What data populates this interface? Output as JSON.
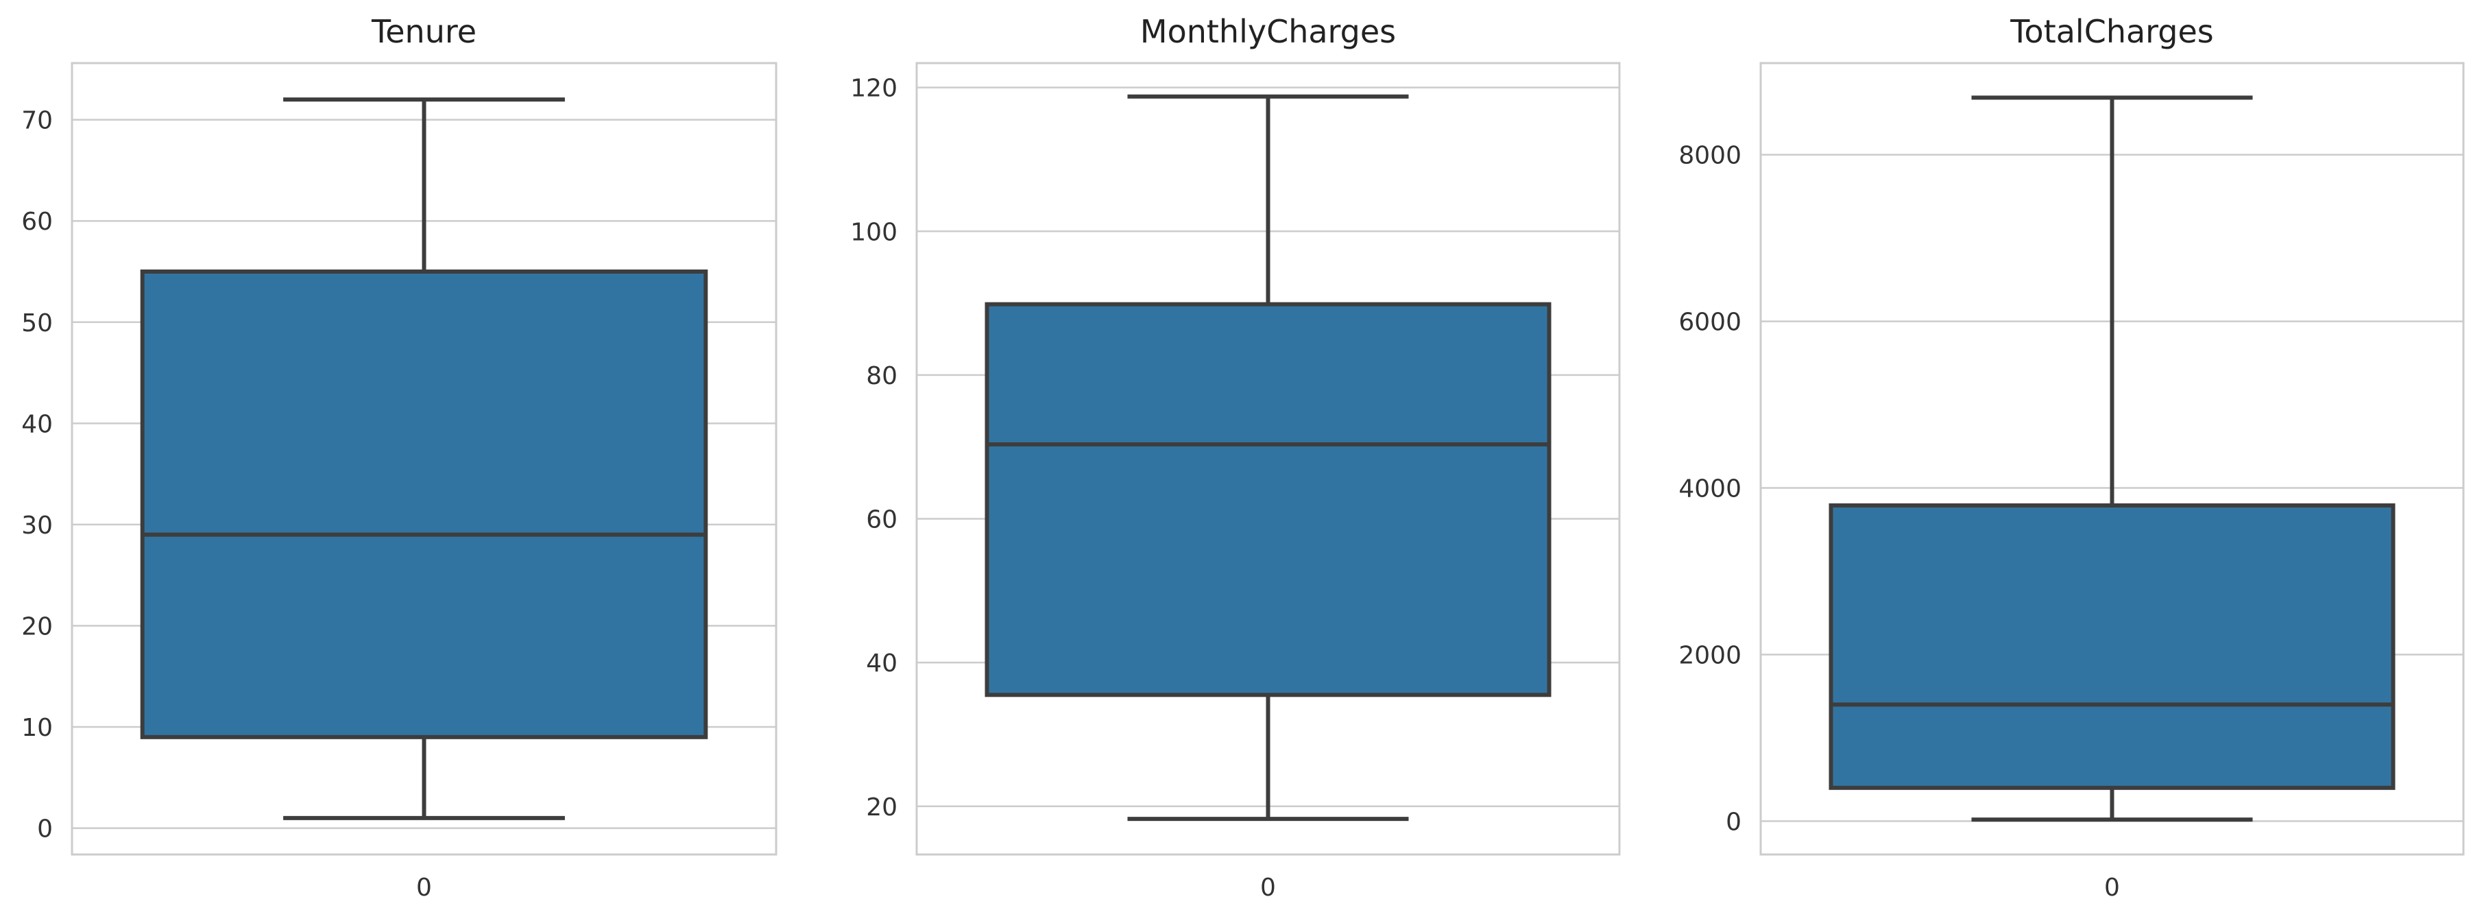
{
  "chart_data": [
    {
      "type": "box",
      "title": "Tenure",
      "categories": [
        "0"
      ],
      "ylim": [
        -2.6,
        75.6
      ],
      "yticks": [
        0,
        10,
        20,
        30,
        40,
        50,
        60,
        70
      ],
      "box": {
        "min": 1,
        "q1": 9,
        "median": 29,
        "q3": 55,
        "max": 72
      },
      "grid": true
    },
    {
      "type": "box",
      "title": "MonthlyCharges",
      "categories": [
        "0"
      ],
      "ylim": [
        13.3,
        123.4
      ],
      "yticks": [
        20,
        40,
        60,
        80,
        100,
        120
      ],
      "box": {
        "min": 18.25,
        "q1": 35.5,
        "median": 70.35,
        "q3": 89.85,
        "max": 118.75
      },
      "grid": true
    },
    {
      "type": "box",
      "title": "TotalCharges",
      "categories": [
        "0"
      ],
      "ylim": [
        -400,
        9100
      ],
      "yticks": [
        0,
        2000,
        4000,
        6000,
        8000
      ],
      "box": {
        "min": 18.8,
        "q1": 400,
        "median": 1400,
        "q3": 3790,
        "max": 8685
      },
      "grid": true
    }
  ],
  "colors": {
    "box_fill": "#3274a1",
    "line": "#3d3d3d",
    "grid": "#cccccc"
  }
}
